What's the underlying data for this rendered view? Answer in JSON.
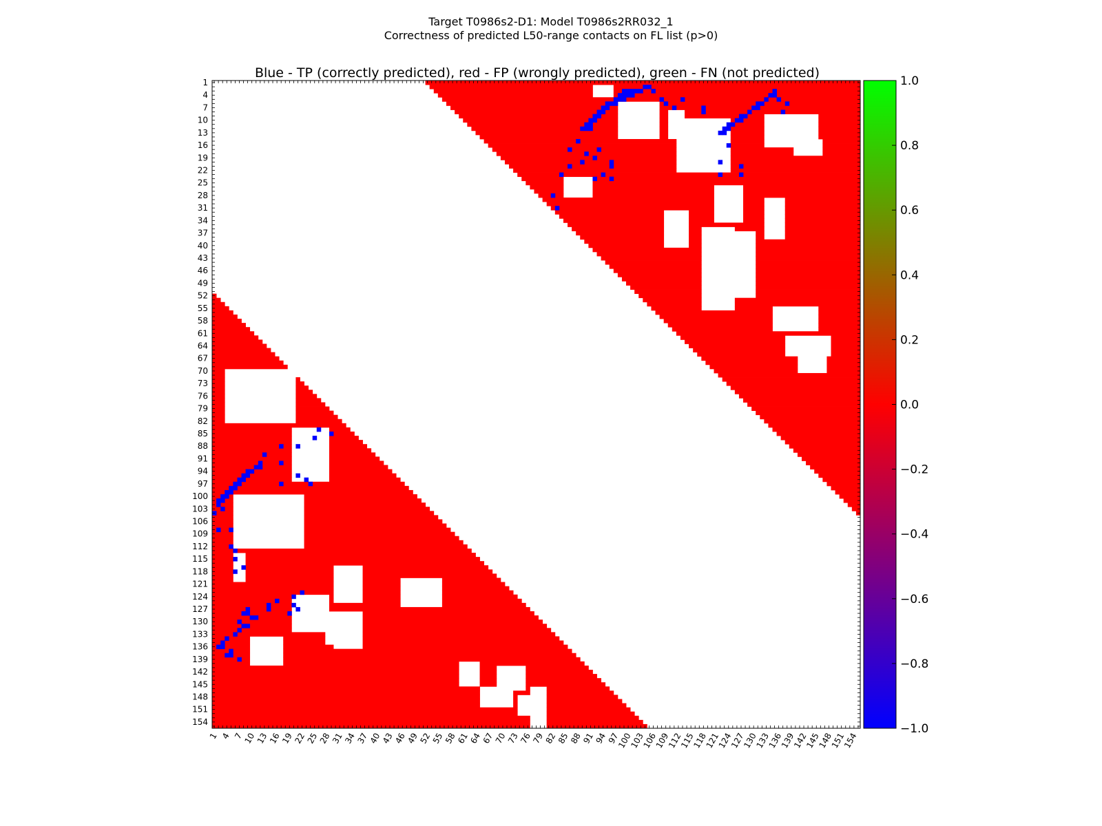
{
  "figure": {
    "title_line1": "Target T0986s2-D1: Model T0986s2RR032_1",
    "title_line2": "Correctness of predicted L50-range contacts on FL list (p>0)"
  },
  "chart_data": {
    "type": "heatmap",
    "title": "Blue - TP (correctly predicted), red - FP (wrongly predicted), green - FN (not predicted)",
    "n_residues": 155,
    "x_ticks": [
      1,
      4,
      7,
      10,
      13,
      16,
      19,
      22,
      25,
      28,
      31,
      34,
      37,
      40,
      43,
      46,
      49,
      52,
      55,
      58,
      61,
      64,
      67,
      70,
      73,
      76,
      79,
      82,
      85,
      88,
      91,
      94,
      97,
      100,
      103,
      106,
      109,
      112,
      115,
      118,
      121,
      124,
      127,
      130,
      133,
      136,
      139,
      142,
      145,
      148,
      151,
      154
    ],
    "y_ticks": [
      1,
      4,
      7,
      10,
      13,
      16,
      19,
      22,
      25,
      28,
      31,
      34,
      37,
      40,
      43,
      46,
      49,
      52,
      55,
      58,
      61,
      64,
      67,
      70,
      73,
      76,
      79,
      82,
      85,
      88,
      91,
      94,
      97,
      100,
      103,
      106,
      109,
      112,
      115,
      118,
      121,
      124,
      127,
      130,
      133,
      136,
      139,
      142,
      145,
      148,
      151,
      154
    ],
    "colorbar": {
      "ticks": [
        "1.0",
        "0.8",
        "0.6",
        "0.4",
        "0.2",
        "0.0",
        "−0.2",
        "−0.4",
        "−0.6",
        "−0.8",
        "−1.0"
      ],
      "range": [
        -1.0,
        1.0
      ],
      "colormap": [
        "#0000ff",
        "#ff0000",
        "#00ff00"
      ]
    },
    "colors": {
      "tp": "#0000ff",
      "fp": "#ff0000",
      "fn": "#00ff00",
      "background": "#ffffff"
    },
    "legend": {
      "tp": "Blue - TP (correctly predicted)",
      "fp": "red - FP (wrongly predicted)",
      "fn": "green - FN (not predicted)"
    },
    "upper_triangle": {
      "red_region": "j >= i + 51",
      "approx_last_row": 106,
      "tp_cells": [
        [
          2,
          104
        ],
        [
          2,
          105
        ],
        [
          3,
          99
        ],
        [
          3,
          100
        ],
        [
          3,
          101
        ],
        [
          3,
          102
        ],
        [
          3,
          103
        ],
        [
          4,
          98
        ],
        [
          4,
          99
        ],
        [
          4,
          100
        ],
        [
          4,
          101
        ],
        [
          5,
          97
        ],
        [
          5,
          98
        ],
        [
          5,
          99
        ],
        [
          6,
          95
        ],
        [
          6,
          96
        ],
        [
          6,
          97
        ],
        [
          7,
          94
        ],
        [
          7,
          95
        ],
        [
          8,
          93
        ],
        [
          8,
          94
        ],
        [
          9,
          92
        ],
        [
          9,
          93
        ],
        [
          10,
          91
        ],
        [
          10,
          92
        ],
        [
          11,
          90
        ],
        [
          11,
          91
        ],
        [
          12,
          89
        ],
        [
          12,
          90
        ],
        [
          12,
          91
        ],
        [
          3,
          106
        ],
        [
          5,
          108
        ],
        [
          5,
          113
        ],
        [
          6,
          109
        ],
        [
          7,
          111
        ],
        [
          7,
          118
        ],
        [
          8,
          118
        ],
        [
          3,
          135
        ],
        [
          4,
          134
        ],
        [
          4,
          135
        ],
        [
          5,
          133
        ],
        [
          5,
          136
        ],
        [
          6,
          131
        ],
        [
          6,
          132
        ],
        [
          7,
          130
        ],
        [
          7,
          131
        ],
        [
          8,
          129
        ],
        [
          9,
          127
        ],
        [
          9,
          128
        ],
        [
          10,
          126
        ],
        [
          10,
          127
        ],
        [
          11,
          124
        ],
        [
          11,
          125
        ],
        [
          12,
          123
        ],
        [
          12,
          124
        ],
        [
          13,
          122
        ],
        [
          13,
          123
        ],
        [
          8,
          137
        ],
        [
          6,
          138
        ],
        [
          15,
          88
        ],
        [
          17,
          86
        ],
        [
          17,
          93
        ],
        [
          18,
          90
        ],
        [
          19,
          92
        ],
        [
          20,
          89
        ],
        [
          20,
          96
        ],
        [
          21,
          86
        ],
        [
          21,
          96
        ],
        [
          23,
          84
        ],
        [
          23,
          94
        ],
        [
          24,
          92
        ],
        [
          24,
          96
        ],
        [
          16,
          124
        ],
        [
          20,
          122
        ],
        [
          21,
          127
        ],
        [
          23,
          122
        ],
        [
          23,
          127
        ],
        [
          28,
          82
        ],
        [
          31,
          83
        ]
      ]
    },
    "lower_triangle": {
      "red_region": "i >= j + 51",
      "approx_last_row": 155,
      "tp_cells": [
        [
          86,
          25
        ],
        [
          85,
          29
        ],
        [
          84,
          26
        ],
        [
          88,
          17
        ],
        [
          88,
          21
        ],
        [
          90,
          13
        ],
        [
          92,
          12
        ],
        [
          93,
          11
        ],
        [
          94,
          9
        ],
        [
          94,
          10
        ],
        [
          95,
          8
        ],
        [
          95,
          9
        ],
        [
          96,
          7
        ],
        [
          96,
          8
        ],
        [
          97,
          6
        ],
        [
          97,
          7
        ],
        [
          98,
          5
        ],
        [
          98,
          6
        ],
        [
          99,
          4
        ],
        [
          99,
          5
        ],
        [
          100,
          3
        ],
        [
          100,
          4
        ],
        [
          101,
          2
        ],
        [
          101,
          3
        ],
        [
          102,
          2
        ],
        [
          103,
          3
        ],
        [
          104,
          1
        ],
        [
          92,
          17
        ],
        [
          93,
          12
        ],
        [
          95,
          21
        ],
        [
          96,
          23
        ],
        [
          97,
          17
        ],
        [
          97,
          24
        ],
        [
          108,
          2
        ],
        [
          108,
          5
        ],
        [
          112,
          5
        ],
        [
          113,
          6
        ],
        [
          115,
          6
        ],
        [
          117,
          8
        ],
        [
          118,
          6
        ],
        [
          124,
          20
        ],
        [
          123,
          22
        ],
        [
          125,
          16
        ],
        [
          126,
          14
        ],
        [
          127,
          9
        ],
        [
          127,
          14
        ],
        [
          128,
          8
        ],
        [
          128,
          9
        ],
        [
          129,
          10
        ],
        [
          129,
          11
        ],
        [
          130,
          7
        ],
        [
          131,
          8
        ],
        [
          131,
          9
        ],
        [
          132,
          7
        ],
        [
          133,
          6
        ],
        [
          134,
          4
        ],
        [
          135,
          3
        ],
        [
          136,
          2
        ],
        [
          136,
          3
        ],
        [
          137,
          5
        ],
        [
          138,
          4
        ],
        [
          138,
          5
        ],
        [
          139,
          7
        ],
        [
          126,
          20
        ],
        [
          127,
          21
        ],
        [
          128,
          19
        ]
      ]
    }
  }
}
